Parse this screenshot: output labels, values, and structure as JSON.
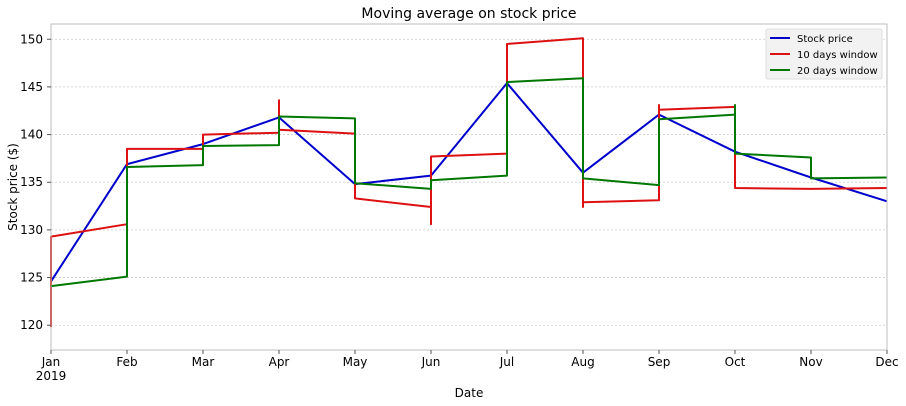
{
  "chart_data": {
    "type": "line",
    "title": "Moving average on stock price",
    "xlabel": "Date",
    "ylabel": "Stock price ($)",
    "x_start_year_label": "2019",
    "x_ticks": [
      "Jan",
      "Feb",
      "Mar",
      "Apr",
      "May",
      "Jun",
      "Jul",
      "Aug",
      "Sep",
      "Oct",
      "Nov",
      "Dec"
    ],
    "xlim": [
      "Jan",
      "Dec"
    ],
    "ylim": [
      117.4,
      151.6
    ],
    "y_ticks": [
      120,
      125,
      130,
      135,
      140,
      145,
      150
    ],
    "grid": true,
    "legend_position": "top-right",
    "series": [
      {
        "name": "Stock price",
        "color": "#0000cc",
        "points": [
          [
            "Jan",
            124.6
          ],
          [
            "Feb",
            136.9
          ],
          [
            "Mar",
            139.0
          ],
          [
            "Apr",
            141.8
          ],
          [
            "May",
            134.8
          ],
          [
            "Jun",
            135.7
          ],
          [
            "Jul",
            145.4
          ],
          [
            "Aug",
            136.0
          ],
          [
            "Sep",
            142.1
          ],
          [
            "Oct",
            138.2
          ],
          [
            "Nov",
            135.5
          ],
          [
            "Dec",
            133.0
          ]
        ]
      },
      {
        "name": "10 days window",
        "color": "#dd1111",
        "points": [
          [
            "Jan",
            119.8
          ],
          [
            "Jan",
            129.3
          ],
          [
            "Feb",
            130.6
          ],
          [
            "Feb",
            138.5
          ],
          [
            "Mar",
            138.5
          ],
          [
            "Mar",
            140.0
          ],
          [
            "Apr",
            140.2
          ],
          [
            "Apr",
            143.6
          ],
          [
            "Apr",
            140.5
          ],
          [
            "May",
            140.1
          ],
          [
            "May",
            133.3
          ],
          [
            "Jun",
            132.4
          ],
          [
            "Jun",
            130.6
          ],
          [
            "Jun",
            137.7
          ],
          [
            "Jul",
            138.0
          ],
          [
            "Jul",
            149.5
          ],
          [
            "Aug",
            150.1
          ],
          [
            "Aug",
            132.4
          ],
          [
            "Aug",
            132.9
          ],
          [
            "Sep",
            133.1
          ],
          [
            "Sep",
            143.1
          ],
          [
            "Sep",
            142.6
          ],
          [
            "Oct",
            142.9
          ],
          [
            "Oct",
            134.4
          ],
          [
            "Nov",
            134.3
          ],
          [
            "Dec",
            134.4
          ]
        ]
      },
      {
        "name": "20 days window",
        "color": "#007700",
        "points": [
          [
            "Jan",
            124.1
          ],
          [
            "Feb",
            125.1
          ],
          [
            "Feb",
            136.6
          ],
          [
            "Mar",
            136.8
          ],
          [
            "Mar",
            138.8
          ],
          [
            "Apr",
            138.9
          ],
          [
            "Apr",
            141.9
          ],
          [
            "May",
            141.7
          ],
          [
            "May",
            134.9
          ],
          [
            "Jun",
            134.3
          ],
          [
            "Jun",
            135.2
          ],
          [
            "Jul",
            135.7
          ],
          [
            "Jul",
            145.5
          ],
          [
            "Aug",
            145.9
          ],
          [
            "Aug",
            135.4
          ],
          [
            "Sep",
            134.7
          ],
          [
            "Sep",
            141.6
          ],
          [
            "Oct",
            142.1
          ],
          [
            "Oct",
            143.1
          ],
          [
            "Oct",
            138.0
          ],
          [
            "Nov",
            137.6
          ],
          [
            "Nov",
            135.4
          ],
          [
            "Dec",
            135.5
          ]
        ]
      }
    ]
  }
}
